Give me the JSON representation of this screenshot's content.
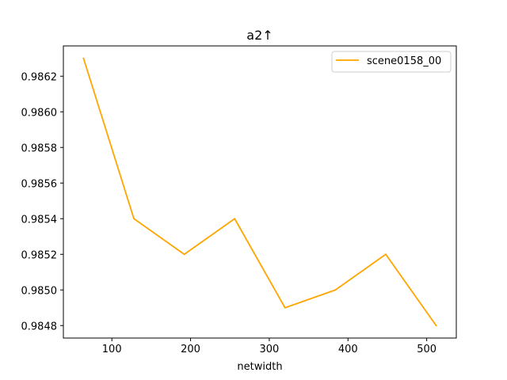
{
  "chart_data": {
    "type": "line",
    "title": "a2↑",
    "xlabel": "netwidth",
    "ylabel": "",
    "xlim": [
      38.4,
      537.6
    ],
    "ylim": [
      0.98473,
      0.98637
    ],
    "xticks": [
      100,
      200,
      300,
      400,
      500
    ],
    "yticks": [
      0.9848,
      0.985,
      0.9852,
      0.9854,
      0.9856,
      0.9858,
      0.986,
      0.9862
    ],
    "grid": false,
    "legend_position": "upper right",
    "series": [
      {
        "name": "scene0158_00",
        "color": "#ffa500",
        "x": [
          64,
          128,
          192,
          256,
          320,
          384,
          448,
          512
        ],
        "y": [
          0.9863,
          0.9854,
          0.9852,
          0.9854,
          0.9849,
          0.985,
          0.9852,
          0.9848
        ]
      }
    ]
  }
}
